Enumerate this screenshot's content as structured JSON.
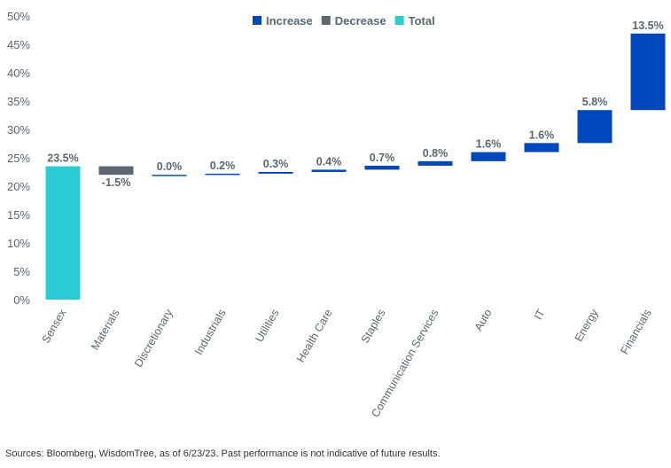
{
  "chart_data": {
    "type": "waterfall",
    "categories": [
      "Sensex",
      "Materials",
      "Discretionary",
      "Industrials",
      "Utilities",
      "Health Care",
      "Staples",
      "Communication Services",
      "Auto",
      "IT",
      "Energy",
      "Financials"
    ],
    "values": [
      23.5,
      -1.5,
      0.0,
      0.2,
      0.3,
      0.4,
      0.7,
      0.8,
      1.6,
      1.6,
      5.8,
      13.5
    ],
    "kinds": [
      "total",
      "decrease",
      "increase",
      "increase",
      "increase",
      "increase",
      "increase",
      "increase",
      "increase",
      "increase",
      "increase",
      "increase"
    ],
    "data_labels": [
      "23.5%",
      "-1.5%",
      "0.0%",
      "0.2%",
      "0.3%",
      "0.4%",
      "0.7%",
      "0.8%",
      "1.6%",
      "1.6%",
      "5.8%",
      "13.5%"
    ],
    "yticks": [
      "0%",
      "5%",
      "10%",
      "15%",
      "20%",
      "25%",
      "30%",
      "35%",
      "40%",
      "45%",
      "50%"
    ],
    "ylim": [
      0,
      50
    ],
    "grid": false,
    "legend": {
      "placement": "top-center",
      "entries": [
        {
          "name": "Increase",
          "color": "#0047bb"
        },
        {
          "name": "Decrease",
          "color": "#5b6670"
        },
        {
          "name": "Total",
          "color": "#2bcbd3"
        }
      ]
    },
    "colors": {
      "increase": "#0047bb",
      "decrease": "#5b6670",
      "total": "#2bcbd3"
    }
  },
  "source": "Sources: Bloomberg, WisdomTree, as of 6/23/23. Past performance is not indicative of future results."
}
